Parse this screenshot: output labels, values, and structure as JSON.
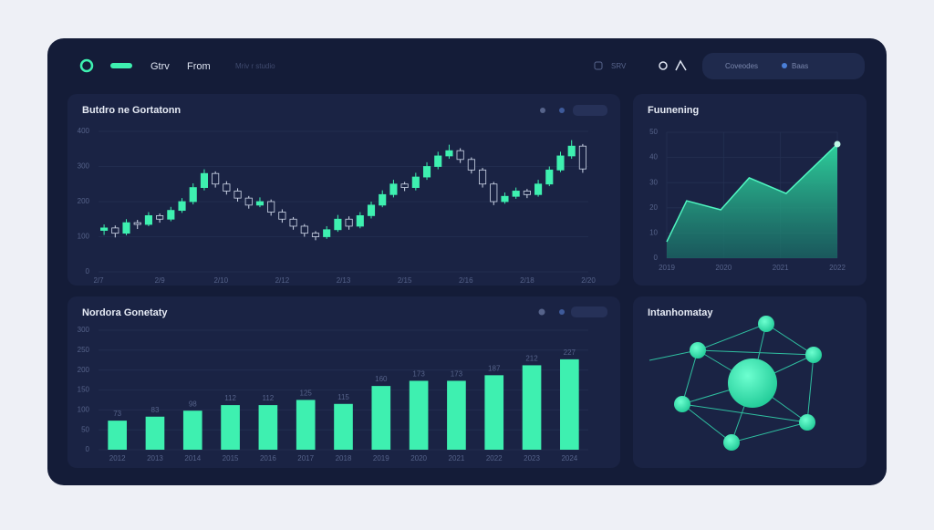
{
  "nav": {
    "brand": "Gtrv",
    "link": "From",
    "hint": "Mriv r studio",
    "right": "SRV",
    "search": "Coveodes",
    "status": "Baas"
  },
  "chart_data": [
    {
      "type": "candlestick",
      "title": "Butdro ne Gortatonn",
      "x_labels": [
        "2/7",
        "2/9",
        "2/10",
        "2/12",
        "2/13",
        "2/15",
        "2/16",
        "2/18",
        "2/20"
      ],
      "candles": [
        [
          118,
          135,
          105,
          125
        ],
        [
          125,
          132,
          98,
          110
        ],
        [
          110,
          150,
          104,
          140
        ],
        [
          140,
          148,
          122,
          135
        ],
        [
          135,
          170,
          130,
          160
        ],
        [
          160,
          166,
          140,
          150
        ],
        [
          150,
          185,
          144,
          175
        ],
        [
          175,
          210,
          168,
          200
        ],
        [
          200,
          252,
          192,
          240
        ],
        [
          240,
          292,
          232,
          280
        ],
        [
          280,
          286,
          240,
          250
        ],
        [
          250,
          258,
          220,
          230
        ],
        [
          230,
          238,
          200,
          210
        ],
        [
          210,
          216,
          180,
          190
        ],
        [
          190,
          212,
          184,
          200
        ],
        [
          200,
          206,
          160,
          170
        ],
        [
          170,
          178,
          140,
          150
        ],
        [
          150,
          156,
          120,
          130
        ],
        [
          130,
          136,
          100,
          110
        ],
        [
          110,
          116,
          90,
          100
        ],
        [
          100,
          130,
          94,
          120
        ],
        [
          120,
          162,
          114,
          150
        ],
        [
          150,
          158,
          120,
          130
        ],
        [
          130,
          170,
          124,
          160
        ],
        [
          160,
          200,
          152,
          190
        ],
        [
          190,
          232,
          184,
          220
        ],
        [
          220,
          262,
          212,
          250
        ],
        [
          250,
          256,
          230,
          240
        ],
        [
          240,
          282,
          232,
          270
        ],
        [
          270,
          312,
          262,
          300
        ],
        [
          300,
          342,
          292,
          330
        ],
        [
          330,
          362,
          322,
          345
        ],
        [
          345,
          352,
          310,
          320
        ],
        [
          320,
          326,
          280,
          290
        ],
        [
          290,
          296,
          240,
          250
        ],
        [
          250,
          256,
          190,
          200
        ],
        [
          200,
          226,
          194,
          215
        ],
        [
          215,
          240,
          208,
          230
        ],
        [
          230,
          236,
          210,
          220
        ],
        [
          220,
          262,
          214,
          250
        ],
        [
          250,
          300,
          244,
          290
        ],
        [
          290,
          342,
          284,
          330
        ],
        [
          330,
          375,
          322,
          358
        ],
        [
          358,
          364,
          282,
          293
        ]
      ],
      "ylim": [
        0,
        400
      ],
      "yticks": [
        0,
        100,
        200,
        300,
        400
      ],
      "color": "#3ef0b0"
    },
    {
      "type": "area",
      "title": "Fuunening",
      "x": [
        2019,
        2019.35,
        2019.95,
        2020.45,
        2021.1,
        2022
      ],
      "values": [
        6.5,
        22.8,
        19.2,
        31.9,
        25.7,
        45.3
      ],
      "xlim": [
        2019,
        2022
      ],
      "xticks": [
        2019,
        2020,
        2021,
        2022
      ],
      "ylim": [
        0,
        50
      ],
      "yticks": [
        0,
        10,
        20,
        30,
        40,
        50
      ],
      "color": "#2fd8a0"
    },
    {
      "type": "bar",
      "title": "Nordora Gonetaty",
      "categories": [
        "2012",
        "2013",
        "2014",
        "2015",
        "2016",
        "2017",
        "2018",
        "2019",
        "2020",
        "2021",
        "2022",
        "2023",
        "2024"
      ],
      "values": [
        73,
        83,
        98,
        112,
        112,
        125,
        115,
        160,
        173,
        173,
        187,
        212,
        227
      ],
      "ylim": [
        0,
        300
      ],
      "yticks": [
        0,
        50,
        100,
        150,
        200,
        250,
        300
      ],
      "color": "#3ef0b0"
    }
  ],
  "network": {
    "title": "Intanhomatay"
  }
}
